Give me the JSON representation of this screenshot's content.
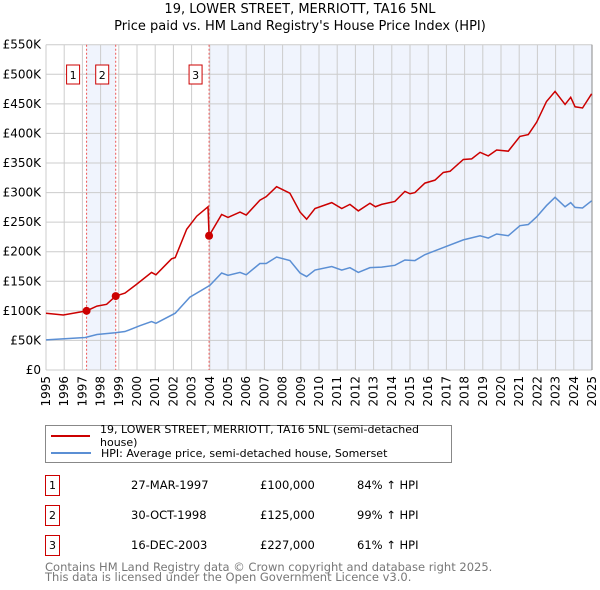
{
  "chart_data": {
    "type": "line",
    "title": "19, LOWER STREET, MERRIOTT, TA16 5NL",
    "subtitle": "Price paid vs. HM Land Registry's House Price Index (HPI)",
    "xlim": [
      1995,
      2025
    ],
    "ylim": [
      0,
      550000
    ],
    "yticks": [
      0,
      50000,
      100000,
      150000,
      200000,
      250000,
      300000,
      350000,
      400000,
      450000,
      500000,
      550000
    ],
    "ytick_labels": [
      "£0",
      "£50K",
      "£100K",
      "£150K",
      "£200K",
      "£250K",
      "£300K",
      "£350K",
      "£400K",
      "£450K",
      "£500K",
      "£550K"
    ],
    "xticks": [
      1995,
      1996,
      1997,
      1998,
      1999,
      2000,
      2001,
      2002,
      2003,
      2004,
      2005,
      2006,
      2007,
      2008,
      2009,
      2010,
      2011,
      2012,
      2013,
      2014,
      2015,
      2016,
      2017,
      2018,
      2019,
      2020,
      2021,
      2022,
      2023,
      2024,
      2025
    ],
    "grid": true,
    "series": [
      {
        "name": "19, LOWER STREET, MERRIOTT, TA16 5NL (semi-detached house)",
        "color": "#cc0000",
        "x": [
          1995,
          1995.95,
          1997.23,
          1997.8,
          1998.33,
          1998.83,
          1999.34,
          1999.98,
          2000.8,
          2001.04,
          2001.9,
          2002.1,
          2002.73,
          2003.28,
          2003.9,
          2003.96,
          2004.65,
          2005.0,
          2005.66,
          2006.0,
          2006.75,
          2007.1,
          2007.67,
          2008.4,
          2008.96,
          2009.32,
          2009.78,
          2010.7,
          2011.25,
          2011.7,
          2012.16,
          2012.8,
          2013.1,
          2013.44,
          2014.17,
          2014.72,
          2015.0,
          2015.27,
          2015.82,
          2016.37,
          2016.83,
          2017.2,
          2017.93,
          2018.39,
          2018.85,
          2019.3,
          2019.76,
          2020.4,
          2021.04,
          2021.5,
          2021.96,
          2022.5,
          2022.97,
          2023.52,
          2023.83,
          2024.07,
          2024.48,
          2024.98
        ],
        "y": [
          96000,
          93000,
          100000,
          108000,
          111000,
          125000,
          130000,
          145000,
          165000,
          161000,
          188000,
          190000,
          238000,
          260000,
          276000,
          227000,
          263000,
          258000,
          267000,
          262000,
          287000,
          293000,
          310000,
          299000,
          267000,
          255000,
          273000,
          283000,
          273000,
          280000,
          269000,
          282000,
          276000,
          280000,
          285000,
          302000,
          298000,
          300000,
          316000,
          321000,
          334000,
          336000,
          356000,
          357000,
          368000,
          362000,
          372000,
          370000,
          395000,
          398000,
          419000,
          454000,
          471000,
          449000,
          461000,
          445000,
          443000,
          467000
        ]
      },
      {
        "name": "HPI: Average price, semi-detached house, Somerset",
        "color": "#5b8fd4",
        "x": [
          1995,
          1997.16,
          1997.8,
          1998.8,
          1999.34,
          2000.16,
          2000.8,
          2001.04,
          2002.1,
          2002.9,
          2004.0,
          2004.65,
          2005.0,
          2005.66,
          2006.0,
          2006.75,
          2007.1,
          2007.67,
          2008.4,
          2008.96,
          2009.32,
          2009.78,
          2010.7,
          2011.25,
          2011.7,
          2012.16,
          2012.8,
          2013.44,
          2014.17,
          2014.72,
          2015.27,
          2015.82,
          2016.83,
          2017.93,
          2018.85,
          2019.3,
          2019.76,
          2020.4,
          2021.04,
          2021.5,
          2021.96,
          2022.5,
          2022.97,
          2023.52,
          2023.83,
          2024.07,
          2024.48,
          2024.98
        ],
        "y": [
          51000,
          55000,
          60000,
          63000,
          65000,
          75000,
          82000,
          79000,
          96000,
          123000,
          143000,
          164000,
          160000,
          165000,
          161000,
          180000,
          180000,
          191000,
          185000,
          164000,
          158000,
          169000,
          175000,
          169000,
          173000,
          165000,
          173000,
          174000,
          177000,
          186000,
          185000,
          195000,
          207000,
          220000,
          227000,
          223000,
          230000,
          227000,
          244000,
          246000,
          259000,
          278000,
          292000,
          276000,
          283000,
          275000,
          274000,
          286000
        ]
      }
    ],
    "sales": [
      {
        "label": "1",
        "x": 1997.23,
        "price": 100000,
        "date": "27-MAR-1997",
        "price_text": "£100,000",
        "hpi": "84% ↑ HPI"
      },
      {
        "label": "2",
        "x": 1998.83,
        "price": 125000,
        "date": "30-OCT-1998",
        "price_text": "£125,000",
        "hpi": "99% ↑ HPI"
      },
      {
        "label": "3",
        "x": 2003.96,
        "price": 227000,
        "date": "16-DEC-2003",
        "price_text": "£227,000",
        "hpi": "61% ↑ HPI"
      }
    ],
    "legend": {
      "placement": "below",
      "red": "19, LOWER STREET, MERRIOTT, TA16 5NL (semi-detached house)",
      "blue": "HPI: Average price, semi-detached house, Somerset"
    }
  },
  "footer": {
    "line1": "Contains HM Land Registry data © Crown copyright and database right 2025.",
    "line2": "This data is licensed under the Open Government Licence v3.0."
  }
}
